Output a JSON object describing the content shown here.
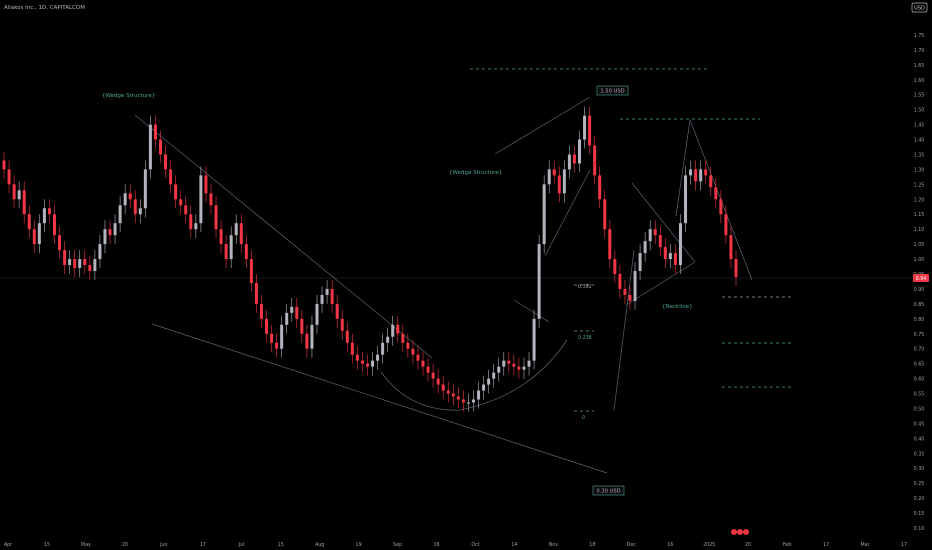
{
  "header": {
    "title": "Allakos Inc., 1D, CAPITALCOM"
  },
  "currency": "USD",
  "price_tag": "0.94",
  "colors": {
    "up": "#b2b5be",
    "down": "#f23645",
    "line": "#4e5a66",
    "teal": "#4ea69a",
    "axis_text": "#9ba1a6",
    "hline": "#363a45"
  },
  "annotations": {
    "wedge_left": "{Wedge Structure}",
    "wedge_right": "{Wedge Structure}",
    "neckline": "{Neckline}",
    "high_label": "1.50 USD",
    "low_label": "0.30 USD",
    "fib_382": "0.382",
    "fib_236": "0.236",
    "fib_0": "0"
  },
  "chart_data": {
    "type": "candlestick",
    "title": "Allakos Inc., 1D, CAPITALCOM",
    "ylabel": "USD",
    "ylim": [
      0.1,
      1.8
    ],
    "y_ticks": [
      0.1,
      0.15,
      0.2,
      0.25,
      0.3,
      0.35,
      0.4,
      0.45,
      0.5,
      0.55,
      0.6,
      0.65,
      0.7,
      0.75,
      0.8,
      0.85,
      0.9,
      0.95,
      1.0,
      1.05,
      1.1,
      1.15,
      1.2,
      1.25,
      1.3,
      1.35,
      1.4,
      1.45,
      1.5,
      1.55,
      1.6,
      1.65,
      1.7,
      1.75
    ],
    "x_ticks": [
      "Apr",
      "15",
      "May",
      "20",
      "Jun",
      "17",
      "Jul",
      "15",
      "Aug",
      "19",
      "Sep",
      "16",
      "Oct",
      "14",
      "Nov",
      "18",
      "Dec",
      "16",
      "2025",
      "20",
      "Feb",
      "17",
      "Mar",
      "17"
    ],
    "series": [
      {
        "name": "close",
        "values": [
          1.3,
          1.25,
          1.2,
          1.23,
          1.15,
          1.1,
          1.05,
          1.12,
          1.17,
          1.15,
          1.08,
          1.03,
          0.98,
          1.0,
          0.97,
          1.0,
          0.98,
          0.96,
          1.0,
          1.05,
          1.1,
          1.08,
          1.12,
          1.18,
          1.22,
          1.2,
          1.15,
          1.17,
          1.3,
          1.45,
          1.4,
          1.35,
          1.3,
          1.25,
          1.2,
          1.18,
          1.15,
          1.1,
          1.12,
          1.28,
          1.22,
          1.18,
          1.1,
          1.05,
          1.0,
          1.08,
          1.12,
          1.05,
          1.0,
          0.92,
          0.85,
          0.8,
          0.75,
          0.72,
          0.7,
          0.78,
          0.82,
          0.84,
          0.8,
          0.75,
          0.7,
          0.78,
          0.85,
          0.88,
          0.9,
          0.85,
          0.8,
          0.76,
          0.72,
          0.68,
          0.66,
          0.65,
          0.64,
          0.66,
          0.68,
          0.72,
          0.74,
          0.78,
          0.75,
          0.72,
          0.7,
          0.68,
          0.66,
          0.64,
          0.62,
          0.6,
          0.58,
          0.56,
          0.55,
          0.54,
          0.53,
          0.52,
          0.52,
          0.53,
          0.56,
          0.58,
          0.6,
          0.62,
          0.64,
          0.66,
          0.65,
          0.64,
          0.63,
          0.64,
          0.66,
          0.8,
          1.05,
          1.25,
          1.3,
          1.28,
          1.22,
          1.3,
          1.35,
          1.32,
          1.4,
          1.48,
          1.38,
          1.28,
          1.2,
          1.1,
          1.0,
          0.95,
          0.9,
          0.88,
          0.86,
          0.96,
          1.02,
          1.06,
          1.1,
          1.08,
          1.04,
          1.0,
          1.02,
          0.98,
          1.12,
          1.28,
          1.3,
          1.26,
          1.3,
          1.28,
          1.24,
          1.2,
          1.15,
          1.08,
          1.0,
          0.94
        ]
      },
      {
        "name": "open",
        "values": [
          1.33,
          1.3,
          1.25,
          1.2,
          1.23,
          1.15,
          1.1,
          1.05,
          1.12,
          1.17,
          1.15,
          1.08,
          1.03,
          0.98,
          1.0,
          0.97,
          1.0,
          0.98,
          0.96,
          1.0,
          1.05,
          1.1,
          1.08,
          1.12,
          1.18,
          1.22,
          1.2,
          1.15,
          1.17,
          1.3,
          1.45,
          1.4,
          1.35,
          1.3,
          1.25,
          1.2,
          1.18,
          1.15,
          1.1,
          1.12,
          1.28,
          1.22,
          1.18,
          1.1,
          1.05,
          1.0,
          1.08,
          1.12,
          1.05,
          1.0,
          0.92,
          0.85,
          0.8,
          0.75,
          0.72,
          0.7,
          0.78,
          0.82,
          0.84,
          0.8,
          0.75,
          0.7,
          0.78,
          0.85,
          0.88,
          0.9,
          0.85,
          0.8,
          0.76,
          0.72,
          0.68,
          0.66,
          0.65,
          0.64,
          0.66,
          0.68,
          0.72,
          0.74,
          0.78,
          0.75,
          0.72,
          0.7,
          0.68,
          0.66,
          0.64,
          0.62,
          0.6,
          0.58,
          0.56,
          0.55,
          0.54,
          0.53,
          0.52,
          0.52,
          0.53,
          0.56,
          0.58,
          0.6,
          0.62,
          0.64,
          0.66,
          0.65,
          0.64,
          0.63,
          0.64,
          0.66,
          0.8,
          1.05,
          1.25,
          1.3,
          1.28,
          1.22,
          1.3,
          1.35,
          1.32,
          1.4,
          1.48,
          1.38,
          1.28,
          1.2,
          1.1,
          1.0,
          0.95,
          0.9,
          0.88,
          0.86,
          0.96,
          1.02,
          1.06,
          1.1,
          1.08,
          1.04,
          1.0,
          1.02,
          0.98,
          1.12,
          1.28,
          1.3,
          1.26,
          1.3,
          1.28,
          1.24,
          1.2,
          1.15,
          1.08,
          1.0
        ]
      }
    ],
    "levels": {
      "high": 1.5,
      "low": 0.3,
      "current": 0.94
    }
  }
}
